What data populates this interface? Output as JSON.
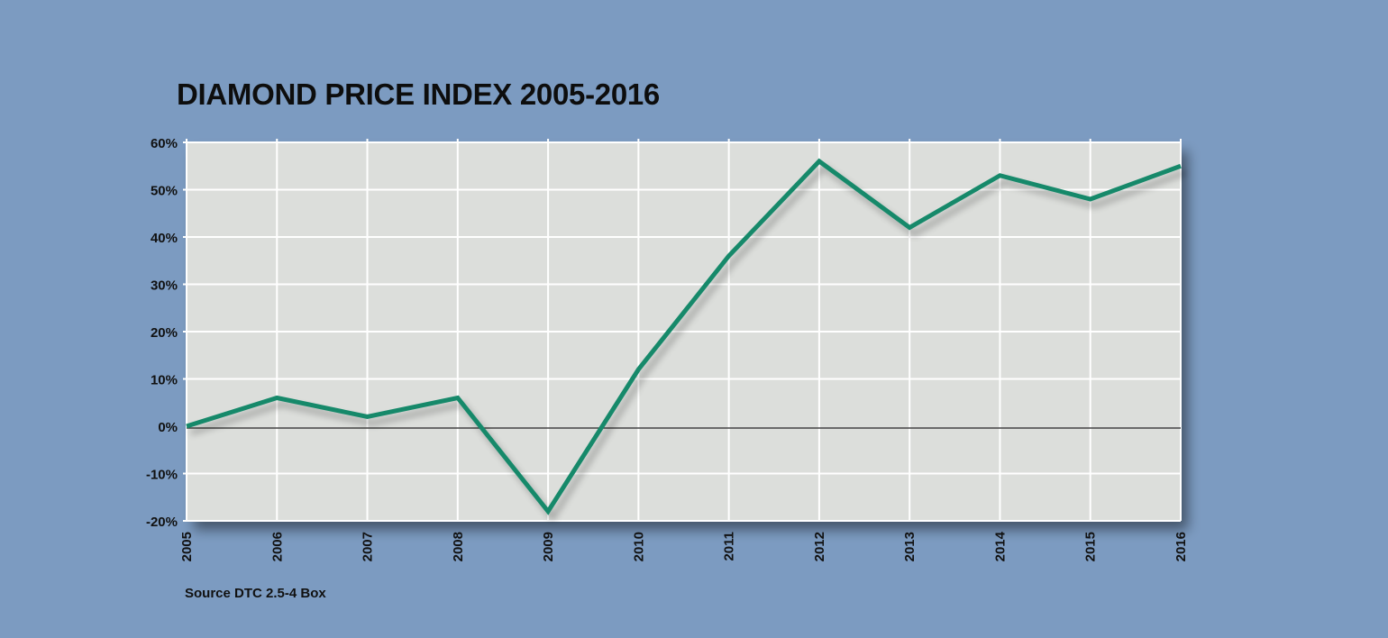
{
  "chart_data": {
    "type": "line",
    "title": "DIAMOND PRICE INDEX 2005-2016",
    "xlabel": "",
    "ylabel": "",
    "x": [
      "2005",
      "2006",
      "2007",
      "2008",
      "2009",
      "2010",
      "2011",
      "2012",
      "2013",
      "2014",
      "2015",
      "2016"
    ],
    "series": [
      {
        "values": [
          0,
          6,
          2,
          6,
          -18,
          12,
          36,
          56,
          42,
          53,
          48,
          55
        ]
      }
    ],
    "ylim": [
      -20,
      60
    ],
    "y_ticks": [
      60,
      50,
      40,
      30,
      20,
      10,
      0,
      -10,
      -20
    ],
    "y_tick_labels": [
      "60%",
      "50%",
      "40%",
      "30%",
      "20%",
      "10%",
      "0%",
      "-10%",
      "-20%"
    ],
    "grid": true,
    "zero_line": true,
    "legend": "none",
    "colors": {
      "background": "#7c9bc1",
      "plot_area": "#dcdedb",
      "grid": "#ffffff",
      "line": "#16896b",
      "zero_line": "#444444"
    }
  },
  "source": "Source DTC 2.5-4 Box"
}
